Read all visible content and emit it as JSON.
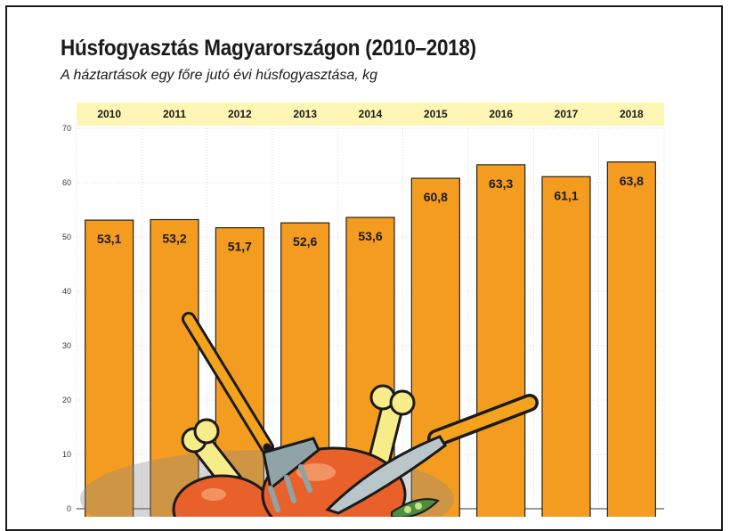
{
  "title": "Húsfogyasztás Magyarországon (2010–2018)",
  "subtitle": "A háztartások egy főre jutó évi húsfogyasztása, kg",
  "colors": {
    "bar": "#f39c1f",
    "year_band": "#fdf6b5",
    "meat": "#e8612a",
    "bone": "#f7ec8a"
  },
  "chart_data": {
    "type": "bar",
    "title": "Húsfogyasztás Magyarországon (2010–2018)",
    "subtitle": "A háztartások egy főre jutó évi húsfogyasztása, kg",
    "categories": [
      "2010",
      "2011",
      "2012",
      "2013",
      "2014",
      "2015",
      "2016",
      "2017",
      "2018"
    ],
    "values": [
      53.1,
      53.2,
      51.7,
      52.6,
      53.6,
      60.8,
      63.3,
      61.1,
      63.8
    ],
    "value_labels": [
      "53,1",
      "53,2",
      "51,7",
      "52,6",
      "53,6",
      "60,8",
      "63,3",
      "61,1",
      "63,8"
    ],
    "ylim": [
      0,
      70
    ],
    "yticks": [
      "0",
      "10",
      "20",
      "30",
      "40",
      "50",
      "60",
      "70"
    ],
    "xlabel": "",
    "ylabel": "",
    "grid": true,
    "category_position": "top"
  },
  "illustration": {
    "icons": [
      "fork-icon",
      "knife-icon",
      "roast-meat-icon",
      "bone-icon"
    ]
  }
}
